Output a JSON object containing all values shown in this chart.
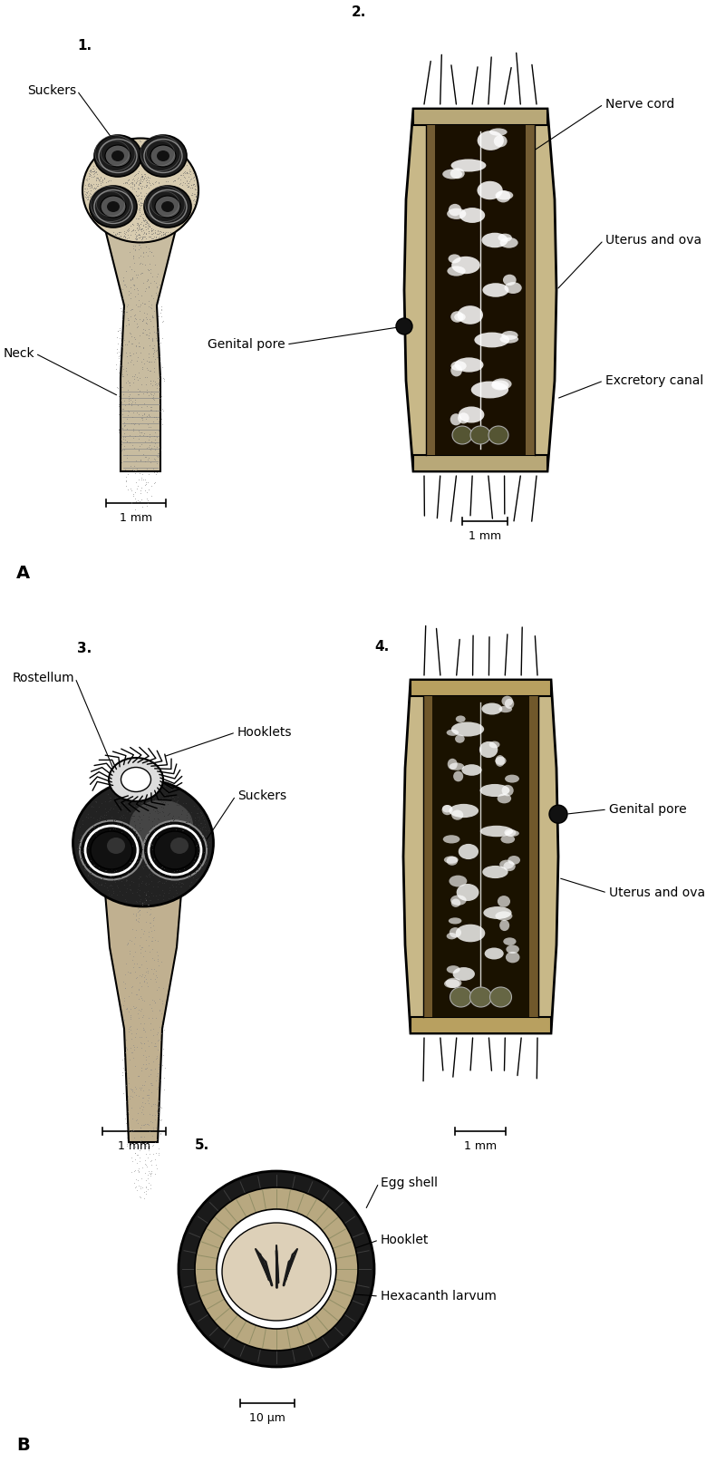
{
  "bg_color": "#ffffff",
  "fig_width": 7.79,
  "fig_height": 16.35,
  "label_A": "A",
  "label_B": "B",
  "fig1_number": "1.",
  "fig1_suckers": "Suckers",
  "fig1_neck": "Neck",
  "fig1_scale": "1 mm",
  "fig2_number": "2.",
  "fig2_nerve_cord": "Nerve cord",
  "fig2_uterus": "Uterus and ova",
  "fig2_excretory": "Excretory canal",
  "fig2_genital_pore": "Genital pore",
  "fig2_scale": "1 mm",
  "fig3_number": "3.",
  "fig3_rostellum": "Rostellum",
  "fig3_hooklets": "Hooklets",
  "fig3_suckers": "Suckers",
  "fig3_scale": "1 mm",
  "fig4_number": "4.",
  "fig4_genital_pore": "Genital pore",
  "fig4_uterus": "Uterus and ova",
  "fig4_scale": "1 mm",
  "fig5_number": "5.",
  "fig5_egg_shell": "Egg shell",
  "fig5_hooklet": "Hooklet",
  "fig5_hexacanth": "Hexacanth larvum",
  "fig5_scale": "10 μm",
  "font_size_label": 10,
  "font_size_number": 11,
  "font_size_scale": 9,
  "text_color": "#000000"
}
